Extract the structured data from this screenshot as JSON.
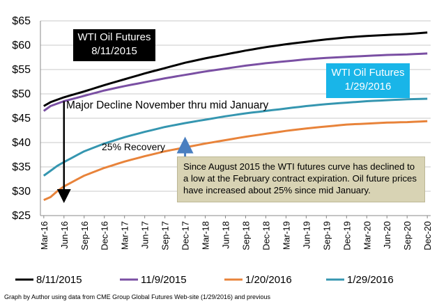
{
  "chart_data": {
    "type": "line",
    "ylim": [
      25,
      65
    ],
    "yticks": [
      "$25",
      "$30",
      "$35",
      "$40",
      "$45",
      "$50",
      "$55",
      "$60",
      "$65"
    ],
    "ytick_values": [
      25,
      30,
      35,
      40,
      45,
      50,
      55,
      60,
      65
    ],
    "xlabels": [
      "Mar-16",
      "Jun-16",
      "Sep-16",
      "Dec-16",
      "Mar-17",
      "Jun-17",
      "Sep-17",
      "Dec-17",
      "Mar-18",
      "Jun-18",
      "Sep-18",
      "Dec-18",
      "Mar-19",
      "Jun-19",
      "Sep-19",
      "Dec-19",
      "Mar-20",
      "Jun-20",
      "Sep-20",
      "Dec-20"
    ],
    "x_month_count": 58,
    "grid": "horizontal",
    "legend_position": "bottom",
    "series": [
      {
        "name": "8/11/2015",
        "color": "#000000",
        "knots": [
          [
            0,
            47.5
          ],
          [
            1,
            48.3
          ],
          [
            3,
            49.3
          ],
          [
            6,
            50.5
          ],
          [
            9,
            51.8
          ],
          [
            12,
            53.0
          ],
          [
            15,
            54.2
          ],
          [
            18,
            55.3
          ],
          [
            21,
            56.4
          ],
          [
            24,
            57.3
          ],
          [
            27,
            58.1
          ],
          [
            30,
            58.9
          ],
          [
            33,
            59.6
          ],
          [
            36,
            60.2
          ],
          [
            39,
            60.7
          ],
          [
            42,
            61.2
          ],
          [
            45,
            61.6
          ],
          [
            48,
            61.9
          ],
          [
            51,
            62.1
          ],
          [
            54,
            62.3
          ],
          [
            57,
            62.6
          ]
        ]
      },
      {
        "name": "11/9/2015",
        "color": "#7a4fa3",
        "knots": [
          [
            0,
            46.5
          ],
          [
            1,
            47.5
          ],
          [
            3,
            48.5
          ],
          [
            6,
            49.6
          ],
          [
            9,
            50.7
          ],
          [
            12,
            51.6
          ],
          [
            15,
            52.4
          ],
          [
            18,
            53.2
          ],
          [
            21,
            53.9
          ],
          [
            24,
            54.6
          ],
          [
            27,
            55.2
          ],
          [
            30,
            55.8
          ],
          [
            33,
            56.3
          ],
          [
            36,
            56.7
          ],
          [
            39,
            57.1
          ],
          [
            42,
            57.4
          ],
          [
            45,
            57.6
          ],
          [
            48,
            57.8
          ],
          [
            51,
            58.0
          ],
          [
            54,
            58.1
          ],
          [
            57,
            58.3
          ]
        ]
      },
      {
        "name": "1/20/2016",
        "color": "#e8833a",
        "knots": [
          [
            0,
            28.2
          ],
          [
            1,
            28.8
          ],
          [
            2,
            30.0
          ],
          [
            3,
            31.0
          ],
          [
            6,
            33.2
          ],
          [
            9,
            34.8
          ],
          [
            12,
            36.1
          ],
          [
            15,
            37.2
          ],
          [
            18,
            38.2
          ],
          [
            21,
            39.0
          ],
          [
            24,
            39.8
          ],
          [
            27,
            40.5
          ],
          [
            30,
            41.2
          ],
          [
            33,
            41.8
          ],
          [
            36,
            42.4
          ],
          [
            39,
            42.9
          ],
          [
            42,
            43.3
          ],
          [
            45,
            43.7
          ],
          [
            48,
            43.9
          ],
          [
            51,
            44.1
          ],
          [
            54,
            44.2
          ],
          [
            57,
            44.4
          ]
        ]
      },
      {
        "name": "1/29/2016",
        "color": "#3596b0",
        "knots": [
          [
            0,
            33.2
          ],
          [
            1,
            34.2
          ],
          [
            2,
            35.2
          ],
          [
            3,
            36.0
          ],
          [
            6,
            38.2
          ],
          [
            9,
            39.8
          ],
          [
            12,
            41.1
          ],
          [
            15,
            42.2
          ],
          [
            18,
            43.2
          ],
          [
            21,
            44.0
          ],
          [
            24,
            44.7
          ],
          [
            27,
            45.4
          ],
          [
            30,
            46.0
          ],
          [
            33,
            46.5
          ],
          [
            36,
            47.0
          ],
          [
            39,
            47.5
          ],
          [
            42,
            47.9
          ],
          [
            45,
            48.2
          ],
          [
            48,
            48.5
          ],
          [
            51,
            48.7
          ],
          [
            54,
            48.9
          ],
          [
            57,
            49.0
          ]
        ]
      }
    ],
    "annotations": {
      "box_black": [
        "WTI Oil Futures",
        "8/11/2015"
      ],
      "box_blue": [
        "WTI Oil Futures",
        "1/29/2016"
      ],
      "decline": "Major Decline November thru mid January",
      "recovery": "25% Recovery",
      "decline_arrow": {
        "x_month": 3,
        "y_from": 48.5,
        "y_to": 29.0
      },
      "recovery_arrow": {
        "x_month": 21,
        "y_from": 33.5,
        "y_to": 39.5
      },
      "note": "Since August 2015 the WTI futures curve has declined to a low at the February contract expiration.  Oil  future prices have increased about 25% since mid January."
    },
    "source": "Graph by Author using data from CME Group Global Futures Web-site  (1/29/2016) and previous"
  },
  "colors": {
    "decline_arrow": "#000000",
    "recovery_arrow": "#4a7fc0",
    "grid": "#c8c8c8",
    "axis": "#888888"
  }
}
